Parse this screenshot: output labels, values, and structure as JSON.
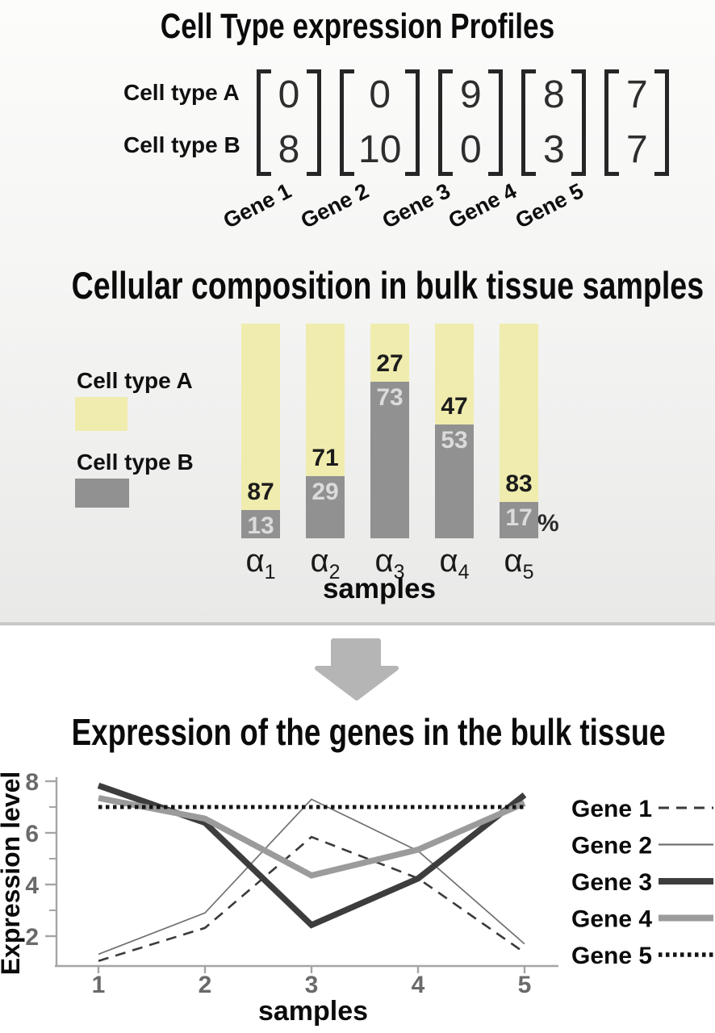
{
  "titles": {
    "profiles": "Cell Type expression Profiles",
    "composition": "Cellular composition in bulk tissue samples",
    "expression": "Expression of the genes in the bulk tissue"
  },
  "profiles": {
    "row_labels": [
      "Cell type A",
      "Cell type B"
    ],
    "genes": [
      "Gene 1",
      "Gene 2",
      "Gene 3",
      "Gene 4",
      "Gene 5"
    ],
    "matrix_columns": [
      [
        0,
        8
      ],
      [
        0,
        10
      ],
      [
        9,
        0
      ],
      [
        8,
        3
      ],
      [
        7,
        7
      ]
    ]
  },
  "colors": {
    "cell_type_a": "#f0ecae",
    "cell_type_b": "#919191",
    "bar_num_on_yellow": "#1c1c1c",
    "bar_num_on_gray": "#dbdbdb",
    "arrow": "#b5b5b5",
    "axis": "#a5a5a5",
    "tick_text": "#6a6a6a"
  },
  "chart_data": [
    {
      "type": "bar",
      "stacked": true,
      "title": "Cellular composition in bulk tissue samples",
      "category_base": "α",
      "category_subs": [
        "1",
        "2",
        "3",
        "4",
        "5"
      ],
      "categories": [
        "α1",
        "α2",
        "α3",
        "α4",
        "α5"
      ],
      "xlabel": "samples",
      "unit": "%",
      "ylim": [
        0,
        100
      ],
      "legend_position": "left",
      "series": [
        {
          "name": "Cell type A",
          "color": "#f0ecae",
          "values": [
            87,
            71,
            27,
            47,
            83
          ]
        },
        {
          "name": "Cell type B",
          "color": "#919191",
          "values": [
            13,
            29,
            73,
            53,
            17
          ]
        }
      ]
    },
    {
      "type": "line",
      "title": "Expression of the genes in the bulk tissue",
      "xlabel": "samples",
      "ylabel": "Expression level",
      "x": [
        1,
        2,
        3,
        4,
        5
      ],
      "xticks": [
        1,
        2,
        3,
        4,
        5
      ],
      "yticks": [
        2,
        4,
        6,
        8
      ],
      "minor_yticks": [
        3,
        5,
        7
      ],
      "ylim": [
        0.9,
        8.4
      ],
      "grid": false,
      "legend_position": "right",
      "series": [
        {
          "name": "Gene 1",
          "dash": "dashed",
          "color": "#3a3a3a",
          "width": 2.6,
          "values": [
            1.04,
            2.32,
            5.84,
            4.24,
            1.36
          ]
        },
        {
          "name": "Gene 2",
          "dash": "solid",
          "color": "#707070",
          "width": 1.7,
          "values": [
            1.3,
            2.9,
            7.3,
            5.3,
            1.7
          ]
        },
        {
          "name": "Gene 3",
          "dash": "solid",
          "color": "#3d3d3d",
          "width": 7.5,
          "values": [
            7.83,
            6.39,
            2.43,
            4.23,
            7.47
          ]
        },
        {
          "name": "Gene 4",
          "dash": "solid",
          "color": "#9b9b9b",
          "width": 7.5,
          "values": [
            7.35,
            6.55,
            4.35,
            5.35,
            7.15
          ]
        },
        {
          "name": "Gene 5",
          "dash": "dotted",
          "color": "#141414",
          "width": 5,
          "values": [
            7,
            7,
            7,
            7,
            7
          ]
        }
      ]
    }
  ]
}
